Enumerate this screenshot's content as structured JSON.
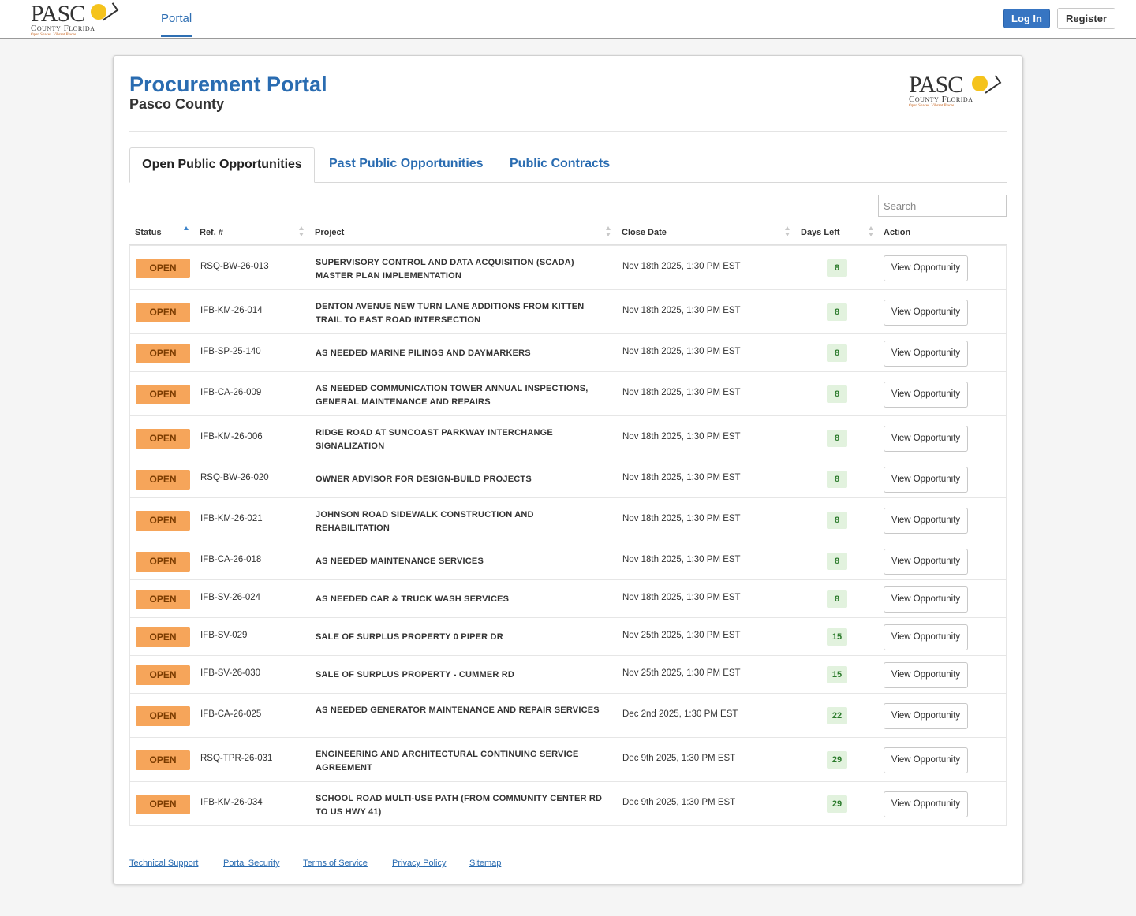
{
  "topbar": {
    "logo_big": "PASC",
    "logo_small": "County Florida",
    "logo_tag": "Open Spaces. Vibrant Places.",
    "nav_portal": "Portal",
    "login_label": "Log In",
    "register_label": "Register"
  },
  "header": {
    "title": "Procurement Portal",
    "subtitle": "Pasco County"
  },
  "tabs": [
    {
      "label": "Open Public Opportunities",
      "active": true
    },
    {
      "label": "Past Public Opportunities",
      "active": false
    },
    {
      "label": "Public Contracts",
      "active": false
    }
  ],
  "search": {
    "placeholder": "Search",
    "value": ""
  },
  "table": {
    "columns": [
      "Status",
      "Ref. #",
      "Project",
      "Close Date",
      "Days Left",
      "Action"
    ],
    "rows": [
      {
        "status": "OPEN",
        "ref": "RSQ-BW-26-013",
        "project": "SUPERVISORY CONTROL AND DATA ACQUISITION (SCADA) MASTER PLAN IMPLEMENTATION",
        "close": "Nov 18th 2025, 1:30 PM EST",
        "days": "8",
        "action": "View Opportunity"
      },
      {
        "status": "OPEN",
        "ref": "IFB-KM-26-014",
        "project": "DENTON AVENUE NEW TURN LANE ADDITIONS FROM KITTEN TRAIL TO EAST ROAD INTERSECTION",
        "close": "Nov 18th 2025, 1:30 PM EST",
        "days": "8",
        "action": "View Opportunity"
      },
      {
        "status": "OPEN",
        "ref": "IFB-SP-25-140",
        "project": "AS NEEDED MARINE PILINGS AND DAYMARKERS",
        "close": "Nov 18th 2025, 1:30 PM EST",
        "days": "8",
        "action": "View Opportunity"
      },
      {
        "status": "OPEN",
        "ref": "IFB-CA-26-009",
        "project": "AS NEEDED COMMUNICATION TOWER ANNUAL INSPECTIONS, GENERAL MAINTENANCE AND REPAIRS",
        "close": "Nov 18th 2025, 1:30 PM EST",
        "days": "8",
        "action": "View Opportunity"
      },
      {
        "status": "OPEN",
        "ref": "IFB-KM-26-006",
        "project": "RIDGE ROAD AT SUNCOAST PARKWAY INTERCHANGE SIGNALIZATION",
        "close": "Nov 18th 2025, 1:30 PM EST",
        "days": "8",
        "action": "View Opportunity"
      },
      {
        "status": "OPEN",
        "ref": "RSQ-BW-26-020",
        "project": "OWNER ADVISOR FOR DESIGN-BUILD PROJECTS",
        "close": "Nov 18th 2025, 1:30 PM EST",
        "days": "8",
        "action": "View Opportunity"
      },
      {
        "status": "OPEN",
        "ref": "IFB-KM-26-021",
        "project": "JOHNSON ROAD SIDEWALK CONSTRUCTION AND REHABILITATION",
        "close": "Nov 18th 2025, 1:30 PM EST",
        "days": "8",
        "action": "View Opportunity"
      },
      {
        "status": "OPEN",
        "ref": "IFB-CA-26-018",
        "project": "AS NEEDED MAINTENANCE SERVICES",
        "close": "Nov 18th 2025, 1:30 PM EST",
        "days": "8",
        "action": "View Opportunity"
      },
      {
        "status": "OPEN",
        "ref": "IFB-SV-26-024",
        "project": "AS NEEDED CAR & TRUCK WASH SERVICES",
        "close": "Nov 18th 2025, 1:30 PM EST",
        "days": "8",
        "action": "View Opportunity"
      },
      {
        "status": "OPEN",
        "ref": "IFB-SV-029",
        "project": "SALE OF SURPLUS PROPERTY 0 PIPER DR",
        "close": "Nov 25th 2025, 1:30 PM EST",
        "days": "15",
        "action": "View Opportunity"
      },
      {
        "status": "OPEN",
        "ref": "IFB-SV-26-030",
        "project": "SALE OF SURPLUS PROPERTY - CUMMER RD",
        "close": "Nov 25th 2025, 1:30 PM EST",
        "days": "15",
        "action": "View Opportunity"
      },
      {
        "status": "OPEN",
        "ref": "IFB-CA-26-025",
        "project": "AS NEEDED GENERATOR MAINTENANCE AND REPAIR SERVICES",
        "close": "Dec 2nd 2025, 1:30 PM EST",
        "days": "22",
        "action": "View Opportunity"
      },
      {
        "status": "OPEN",
        "ref": "RSQ-TPR-26-031",
        "project": "ENGINEERING AND ARCHITECTURAL CONTINUING SERVICE AGREEMENT",
        "close": "Dec 9th 2025, 1:30 PM EST",
        "days": "29",
        "action": "View Opportunity"
      },
      {
        "status": "OPEN",
        "ref": "IFB-KM-26-034",
        "project": "SCHOOL ROAD MULTI-USE PATH (FROM COMMUNITY CENTER RD TO US HWY 41)",
        "close": "Dec 9th 2025, 1:30 PM EST",
        "days": "29",
        "action": "View Opportunity"
      }
    ]
  },
  "footer": {
    "links": [
      "Technical Support",
      "Portal Security",
      "Terms of Service",
      "Privacy Policy",
      "Sitemap"
    ]
  },
  "colors": {
    "brand_blue": "#2a6cb1",
    "login_blue": "#3775c2",
    "open_badge": "#f6a55a",
    "days_badge_bg": "#e2f2de",
    "days_badge_text": "#2c7b2c"
  }
}
